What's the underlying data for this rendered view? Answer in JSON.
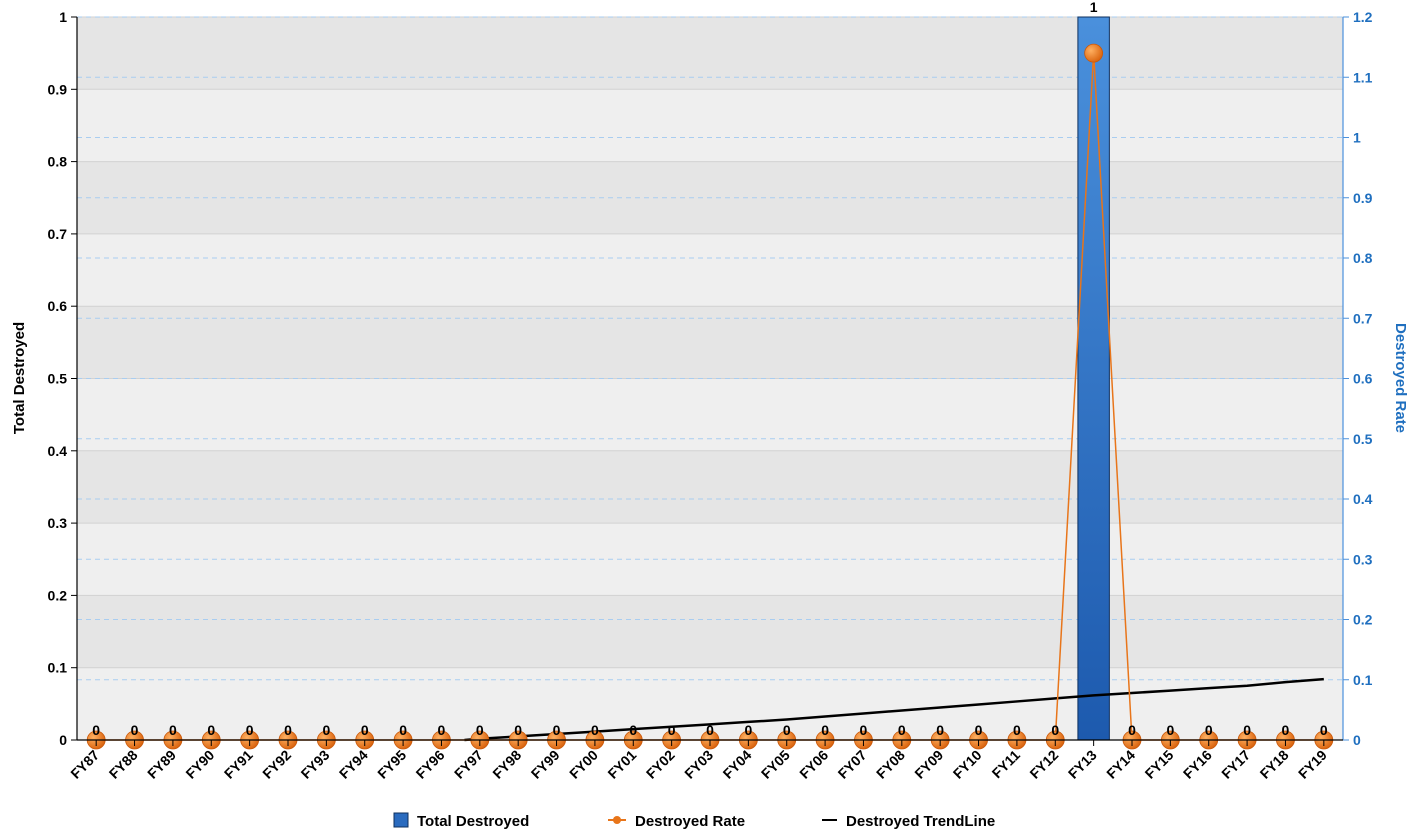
{
  "chart_data": {
    "type": "bar",
    "categories": [
      "FY87",
      "FY88",
      "FY89",
      "FY90",
      "FY91",
      "FY92",
      "FY93",
      "FY94",
      "FY95",
      "FY96",
      "FY97",
      "FY98",
      "FY99",
      "FY00",
      "FY01",
      "FY02",
      "FY03",
      "FY04",
      "FY05",
      "FY06",
      "FY07",
      "FY08",
      "FY09",
      "FY10",
      "FY11",
      "FY12",
      "FY13",
      "FY14",
      "FY15",
      "FY16",
      "FY17",
      "FY18",
      "FY19"
    ],
    "series": [
      {
        "name": "Total Destroyed",
        "type": "bar",
        "axis": "left",
        "values": [
          0,
          0,
          0,
          0,
          0,
          0,
          0,
          0,
          0,
          0,
          0,
          0,
          0,
          0,
          0,
          0,
          0,
          0,
          0,
          0,
          0,
          0,
          0,
          0,
          0,
          0,
          1,
          0,
          0,
          0,
          0,
          0,
          0
        ],
        "data_labels": [
          "0",
          "0",
          "0",
          "0",
          "0",
          "0",
          "0",
          "0",
          "0",
          "0",
          "0",
          "0",
          "0",
          "0",
          "0",
          "0",
          "0",
          "0",
          "0",
          "0",
          "0",
          "0",
          "0",
          "0",
          "0",
          "0",
          "1",
          "0",
          "0",
          "0",
          "0",
          "0",
          "0"
        ],
        "color": "#2a6bbf"
      },
      {
        "name": "Destroyed Rate",
        "type": "line",
        "axis": "right",
        "values": [
          0,
          0,
          0,
          0,
          0,
          0,
          0,
          0,
          0,
          0,
          0,
          0,
          0,
          0,
          0,
          0,
          0,
          0,
          0,
          0,
          0,
          0,
          0,
          0,
          0,
          0,
          1.14,
          0,
          0,
          0,
          0,
          0,
          0
        ],
        "color": "#e8751a"
      },
      {
        "name": "Destroyed TrendLine",
        "type": "line",
        "axis": "right",
        "values": [
          -0.048,
          -0.043,
          -0.038,
          -0.033,
          -0.028,
          -0.023,
          -0.018,
          -0.013,
          -0.008,
          -0.003,
          0.002,
          0.006,
          0.01,
          0.014,
          0.018,
          0.022,
          0.026,
          0.03,
          0.034,
          0.039,
          0.044,
          0.049,
          0.054,
          0.059,
          0.064,
          0.069,
          0.074,
          0.078,
          0.082,
          0.086,
          0.09,
          0.096,
          0.101
        ],
        "color": "#000000"
      }
    ],
    "ylabel": "Total Destroyed",
    "y2label": "Destroyed Rate",
    "ylim": [
      0,
      1
    ],
    "y2lim": [
      0,
      1.2
    ],
    "yticks": [
      "0",
      "0.1",
      "0.2",
      "0.3",
      "0.4",
      "0.5",
      "0.6",
      "0.7",
      "0.8",
      "0.9",
      "1"
    ],
    "y2ticks": [
      "0",
      "0.1",
      "0.2",
      "0.3",
      "0.4",
      "0.5",
      "0.6",
      "0.7",
      "0.8",
      "0.9",
      "1",
      "1.1",
      "1.2"
    ],
    "legend_position": "bottom",
    "grid": true
  }
}
